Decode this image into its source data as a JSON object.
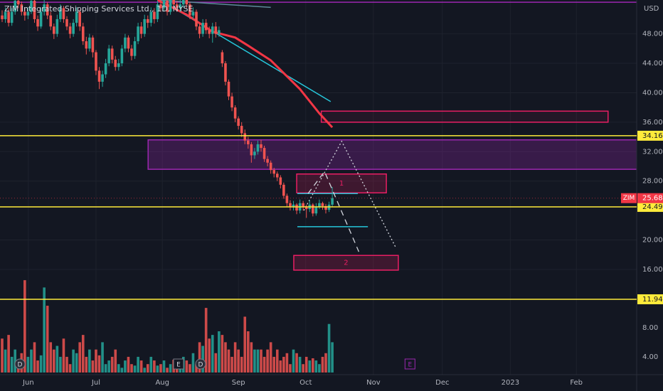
{
  "chart_data": {
    "type": "candlestick",
    "title": "ZIM Integrated Shipping Services Ltd., 1D, NYSE",
    "currency": "USD",
    "symbol": "ZIM",
    "up_color": "#26a69a",
    "down_color": "#ef5350",
    "last_price_color": "#f23645",
    "grid": true,
    "xlim": [
      -0.66,
      196.04
    ],
    "ylim": [
      1.7,
      52.6
    ],
    "xticks": [
      {
        "value": 8.1,
        "label": "Jun"
      },
      {
        "value": 29,
        "label": "Jul"
      },
      {
        "value": 49.5,
        "label": "Aug"
      },
      {
        "value": 73,
        "label": "Sep"
      },
      {
        "value": 93.8,
        "label": "Oct"
      },
      {
        "value": 114.7,
        "label": "Nov"
      },
      {
        "value": 136,
        "label": "Dec"
      },
      {
        "value": 157,
        "label": "2023"
      },
      {
        "value": 177.4,
        "label": "Feb"
      }
    ],
    "yticks": [
      {
        "value": 48,
        "label": "48.00"
      },
      {
        "value": 44,
        "label": "44.00"
      },
      {
        "value": 40,
        "label": "40.00"
      },
      {
        "value": 36,
        "label": "36.00"
      },
      {
        "value": 32,
        "label": "32.00"
      },
      {
        "value": 28,
        "label": "28.00"
      },
      {
        "value": 20,
        "label": "20.00"
      },
      {
        "value": 16,
        "label": "16.00"
      }
    ],
    "candles": [
      [
        50.5,
        51.2,
        49.6,
        50
      ],
      [
        50,
        51.6,
        49.5,
        51
      ],
      [
        51,
        51.5,
        49,
        49.5
      ],
      [
        49.5,
        51.5,
        49.1,
        51
      ],
      [
        51,
        53,
        50.6,
        52.5
      ],
      [
        52.5,
        53.1,
        51.5,
        52
      ],
      [
        52,
        52.4,
        50.5,
        51
      ],
      [
        51,
        51.5,
        49.8,
        50.5
      ],
      [
        50.5,
        51.6,
        50,
        51
      ],
      [
        51,
        53,
        50.7,
        52.5
      ],
      [
        52.5,
        52.8,
        49.5,
        50
      ],
      [
        50,
        50.5,
        48.4,
        49
      ],
      [
        49,
        51.5,
        48.7,
        51
      ],
      [
        51,
        52.6,
        50.5,
        52
      ],
      [
        52,
        52.3,
        50,
        50.5
      ],
      [
        50.5,
        51,
        48.5,
        49
      ],
      [
        49,
        49.4,
        47.3,
        48
      ],
      [
        48,
        50.6,
        47.6,
        50
      ],
      [
        50,
        52,
        49.6,
        51.5
      ],
      [
        51.5,
        51.8,
        49.5,
        50
      ],
      [
        50,
        50.4,
        48.5,
        49
      ],
      [
        49,
        49.5,
        47.4,
        48
      ],
      [
        48,
        50,
        47.6,
        49.5
      ],
      [
        49.5,
        51.6,
        49,
        51
      ],
      [
        51,
        51.3,
        48.4,
        49
      ],
      [
        49,
        49.5,
        46.5,
        47
      ],
      [
        47,
        47.6,
        45.2,
        46
      ],
      [
        46,
        48,
        45.6,
        47.5
      ],
      [
        47.5,
        47.8,
        44.8,
        45.5
      ],
      [
        45.5,
        45.8,
        42.4,
        43
      ],
      [
        43,
        43.5,
        40.5,
        41.5
      ],
      [
        41.5,
        43,
        40.8,
        42.5
      ],
      [
        42.5,
        44.6,
        42,
        44
      ],
      [
        44,
        46.5,
        43.6,
        46
      ],
      [
        46,
        46.4,
        44,
        44.5
      ],
      [
        44.5,
        45,
        43,
        43.5
      ],
      [
        43.5,
        44.6,
        43,
        44
      ],
      [
        44,
        46.5,
        43.6,
        46
      ],
      [
        46,
        48,
        45.5,
        47.5
      ],
      [
        47.5,
        47.8,
        45.5,
        46
      ],
      [
        46,
        46.5,
        44.4,
        45
      ],
      [
        45,
        47.6,
        44.6,
        47
      ],
      [
        47,
        49.5,
        46.6,
        49
      ],
      [
        49,
        49.6,
        47.4,
        48
      ],
      [
        48,
        50.6,
        47.6,
        50
      ],
      [
        50,
        50.5,
        48.8,
        49.5
      ],
      [
        49.5,
        51.6,
        49,
        51
      ],
      [
        51,
        51.5,
        49.4,
        50
      ],
      [
        50,
        52.5,
        49.6,
        52
      ],
      [
        52,
        52.6,
        51,
        51.5
      ],
      [
        51.5,
        53,
        51,
        52.5
      ],
      [
        52.5,
        53,
        50.5,
        51
      ],
      [
        51,
        53.5,
        50.6,
        53
      ],
      [
        53,
        53.4,
        51.5,
        52
      ],
      [
        52,
        52.5,
        51,
        51.5
      ],
      [
        51.5,
        52.6,
        51,
        52
      ],
      [
        52,
        53.5,
        51.6,
        53
      ],
      [
        53,
        53.4,
        51.5,
        52
      ],
      [
        52,
        52.3,
        50,
        50.5
      ],
      [
        50.5,
        51.6,
        50,
        51
      ],
      [
        51,
        51.3,
        48.5,
        49
      ],
      [
        49,
        49.5,
        47.4,
        48
      ],
      [
        48,
        50,
        47.6,
        49.5
      ],
      [
        49.5,
        50,
        48,
        48.5
      ],
      [
        48.5,
        49,
        47.4,
        48
      ],
      [
        48,
        49.5,
        46.8,
        49
      ],
      [
        49,
        49.6,
        47.5,
        48
      ],
      [
        48,
        49,
        47.6,
        48.5
      ],
      [
        45.5,
        45.8,
        43.5,
        44
      ],
      [
        44,
        44.3,
        41,
        41.5
      ],
      [
        41.5,
        41.8,
        39,
        39.5
      ],
      [
        39.5,
        40,
        37.5,
        38
      ],
      [
        38,
        38.3,
        36,
        36.5
      ],
      [
        36.5,
        36.8,
        35,
        35.5
      ],
      [
        35.5,
        36,
        34,
        34.5
      ],
      [
        34.5,
        35,
        33,
        33.5
      ],
      [
        33.5,
        34,
        32.4,
        33
      ],
      [
        33,
        33.3,
        30.5,
        31.5
      ],
      [
        31.5,
        32.5,
        31,
        32
      ],
      [
        32,
        33.5,
        31.6,
        33
      ],
      [
        33,
        33.6,
        32,
        32.5
      ],
      [
        32.5,
        32.8,
        30.6,
        31
      ],
      [
        31,
        31.4,
        30,
        30.5
      ],
      [
        30.5,
        30.8,
        29,
        29.5
      ],
      [
        29.5,
        29.8,
        28.5,
        29
      ],
      [
        29,
        29.3,
        28,
        28.5
      ],
      [
        28.5,
        28.8,
        27,
        27.5
      ],
      [
        27.5,
        27.8,
        25.6,
        26
      ],
      [
        26,
        26.3,
        24.5,
        25
      ],
      [
        25,
        25.4,
        24,
        24.5
      ],
      [
        24.5,
        25.3,
        24,
        24.8
      ],
      [
        24.8,
        25,
        23.5,
        24
      ],
      [
        24,
        25.5,
        23.6,
        25
      ],
      [
        25,
        25.3,
        24,
        24.5
      ],
      [
        24.5,
        24.8,
        23,
        24.2
      ],
      [
        24.2,
        25.4,
        23.8,
        24.8
      ],
      [
        24.8,
        25,
        23.2,
        23.6
      ],
      [
        23.6,
        25,
        23.3,
        24.5
      ],
      [
        24.5,
        25.5,
        24.2,
        25
      ],
      [
        25,
        25.2,
        24.1,
        24.6
      ],
      [
        24.6,
        24.9,
        23.6,
        24.1
      ],
      [
        24.1,
        25.2,
        23.8,
        24.8
      ],
      [
        24.8,
        27.2,
        24.5,
        25.68
      ]
    ],
    "volume": {
      "ylim": [
        0,
        14.9
      ],
      "yticks": [
        {
          "value": 8,
          "label": "8.00"
        },
        {
          "value": 4,
          "label": "4.00"
        }
      ],
      "values": [
        6.5,
        5,
        7,
        4,
        5,
        3.5,
        4.5,
        14.5,
        4,
        5,
        6,
        3.5,
        4.2,
        13.5,
        11,
        6,
        5,
        5.5,
        4,
        6.5,
        4,
        3,
        5,
        4.5,
        6,
        7,
        4,
        5,
        3.5,
        5,
        4.2,
        6,
        3,
        3.5,
        4,
        5,
        3,
        2.5,
        3.5,
        4,
        3,
        2.8,
        4,
        3.5,
        2.5,
        3,
        4,
        3.5,
        2.8,
        3,
        3.5,
        2.5,
        3,
        3.6,
        2.8,
        3,
        4,
        3.5,
        3,
        4.5,
        3,
        6,
        5.5,
        10.7,
        6.5,
        7,
        4.5,
        7.5,
        7,
        6,
        5,
        4,
        6,
        5,
        4,
        9.5,
        7.5,
        6,
        5,
        5,
        5,
        4,
        5,
        6,
        4,
        5,
        3.5,
        4,
        4.5,
        3,
        5,
        4.5,
        4,
        3,
        4,
        3.5,
        3.8,
        3.5,
        3,
        4,
        4.5,
        8.5,
        6
      ]
    },
    "ma": {
      "color": "#f23645",
      "x": [
        48,
        57,
        65,
        72,
        76,
        83,
        92,
        98,
        102
      ],
      "values": [
        52.6,
        50.6,
        48.3,
        47.5,
        46.4,
        44.4,
        40.5,
        37.2,
        35.3
      ]
    },
    "hlines": [
      {
        "value": 34.16,
        "color": "#ffeb3b"
      },
      {
        "value": 24.49,
        "color": "#ffeb3b"
      },
      {
        "value": 11.94,
        "color": "#ffeb3b"
      }
    ],
    "drawings": [
      {
        "kind": "line",
        "color": "#9c27b0",
        "points": [
          [
            -0.66,
            52.3
          ],
          [
            196.04,
            52.3
          ]
        ]
      },
      {
        "kind": "line",
        "color": "#5d8a9a",
        "points": [
          [
            48,
            52.6
          ],
          [
            83,
            51.6
          ]
        ]
      },
      {
        "kind": "line",
        "color": "#26c6da",
        "points": [
          [
            50,
            52.3
          ],
          [
            101.5,
            38.8
          ]
        ]
      },
      {
        "kind": "rect",
        "color": "#e91e63",
        "fill": "rgba(233,30,99,0.08)",
        "points": [
          [
            98.6,
            37.5
          ],
          [
            187.2,
            36
          ]
        ]
      },
      {
        "kind": "rect",
        "color": "#9c27b0",
        "fill": "rgba(156,39,176,0.28)",
        "points": [
          [
            45.1,
            33.6
          ],
          [
            200,
            29.6
          ]
        ]
      },
      {
        "kind": "rect",
        "color": "#e91e63",
        "fill": "rgba(233,30,99,0.2)",
        "points": [
          [
            91,
            28.96
          ],
          [
            118.7,
            26.4
          ]
        ],
        "text": "1"
      },
      {
        "kind": "rect",
        "color": "#e91e63",
        "fill": "rgba(233,30,99,0.2)",
        "points": [
          [
            90.1,
            17.9
          ],
          [
            122.4,
            15.9
          ]
        ],
        "text": "2"
      },
      {
        "kind": "line",
        "color": "#26c6da",
        "points": [
          [
            91.2,
            26.3
          ],
          [
            109.9,
            26.3
          ]
        ]
      },
      {
        "kind": "line",
        "color": "#26c6da",
        "points": [
          [
            91.2,
            21.8
          ],
          [
            113,
            21.8
          ]
        ]
      },
      {
        "kind": "dashed",
        "color": "#d1d4dc",
        "points": [
          [
            94.5,
            26.3
          ],
          [
            99.6,
            29.3
          ],
          [
            110.2,
            18.4
          ]
        ]
      },
      {
        "kind": "dotted",
        "color": "#d1d4dc",
        "points": [
          [
            93.2,
            24
          ],
          [
            104.9,
            33.4
          ],
          [
            121.7,
            18.9
          ]
        ]
      }
    ],
    "events": [
      {
        "x": 5.5,
        "label": "D",
        "shape": "circle",
        "color": "#787b86"
      },
      {
        "x": 61.3,
        "label": "D",
        "shape": "circle",
        "color": "#787b86"
      },
      {
        "x": 54.5,
        "label": "E",
        "shape": "square",
        "color": "#787b86"
      },
      {
        "x": 126,
        "label": "E",
        "shape": "square",
        "color": "#9c27b0"
      }
    ]
  }
}
